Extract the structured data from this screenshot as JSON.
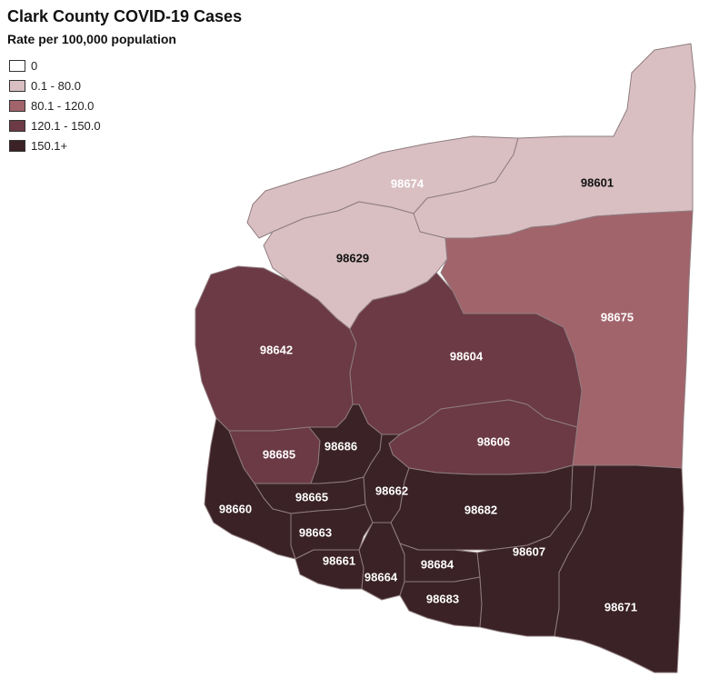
{
  "title": "Clark County COVID-19 Cases",
  "subtitle": "Rate per 100,000 population",
  "colors": {
    "zero": "#ffffff",
    "low": "#d9bfc2",
    "mid": "#a2646b",
    "high": "#6b3a44",
    "top": "#3a2226",
    "border": "#9a8a8c"
  },
  "legend": [
    {
      "label": "0",
      "color": "#ffffff"
    },
    {
      "label": "0.1 - 80.0",
      "color": "#d9bfc2"
    },
    {
      "label": "80.1 - 120.0",
      "color": "#a2646b"
    },
    {
      "label": "120.1 - 150.0",
      "color": "#6b3a44"
    },
    {
      "label": "150.1+",
      "color": "#3a2226"
    }
  ],
  "zip_labels": {
    "z98674": "98674",
    "z98601": "98601",
    "z98629": "98629",
    "z98675": "98675",
    "z98642": "98642",
    "z98604": "98604",
    "z98606": "98606",
    "z98685": "98685",
    "z98686": "98686",
    "z98662": "98662",
    "z98665": "98665",
    "z98682": "98682",
    "z98660": "98660",
    "z98663": "98663",
    "z98607": "98607",
    "z98661": "98661",
    "z98684": "98684",
    "z98664": "98664",
    "z98683": "98683",
    "z98671": "98671"
  }
}
